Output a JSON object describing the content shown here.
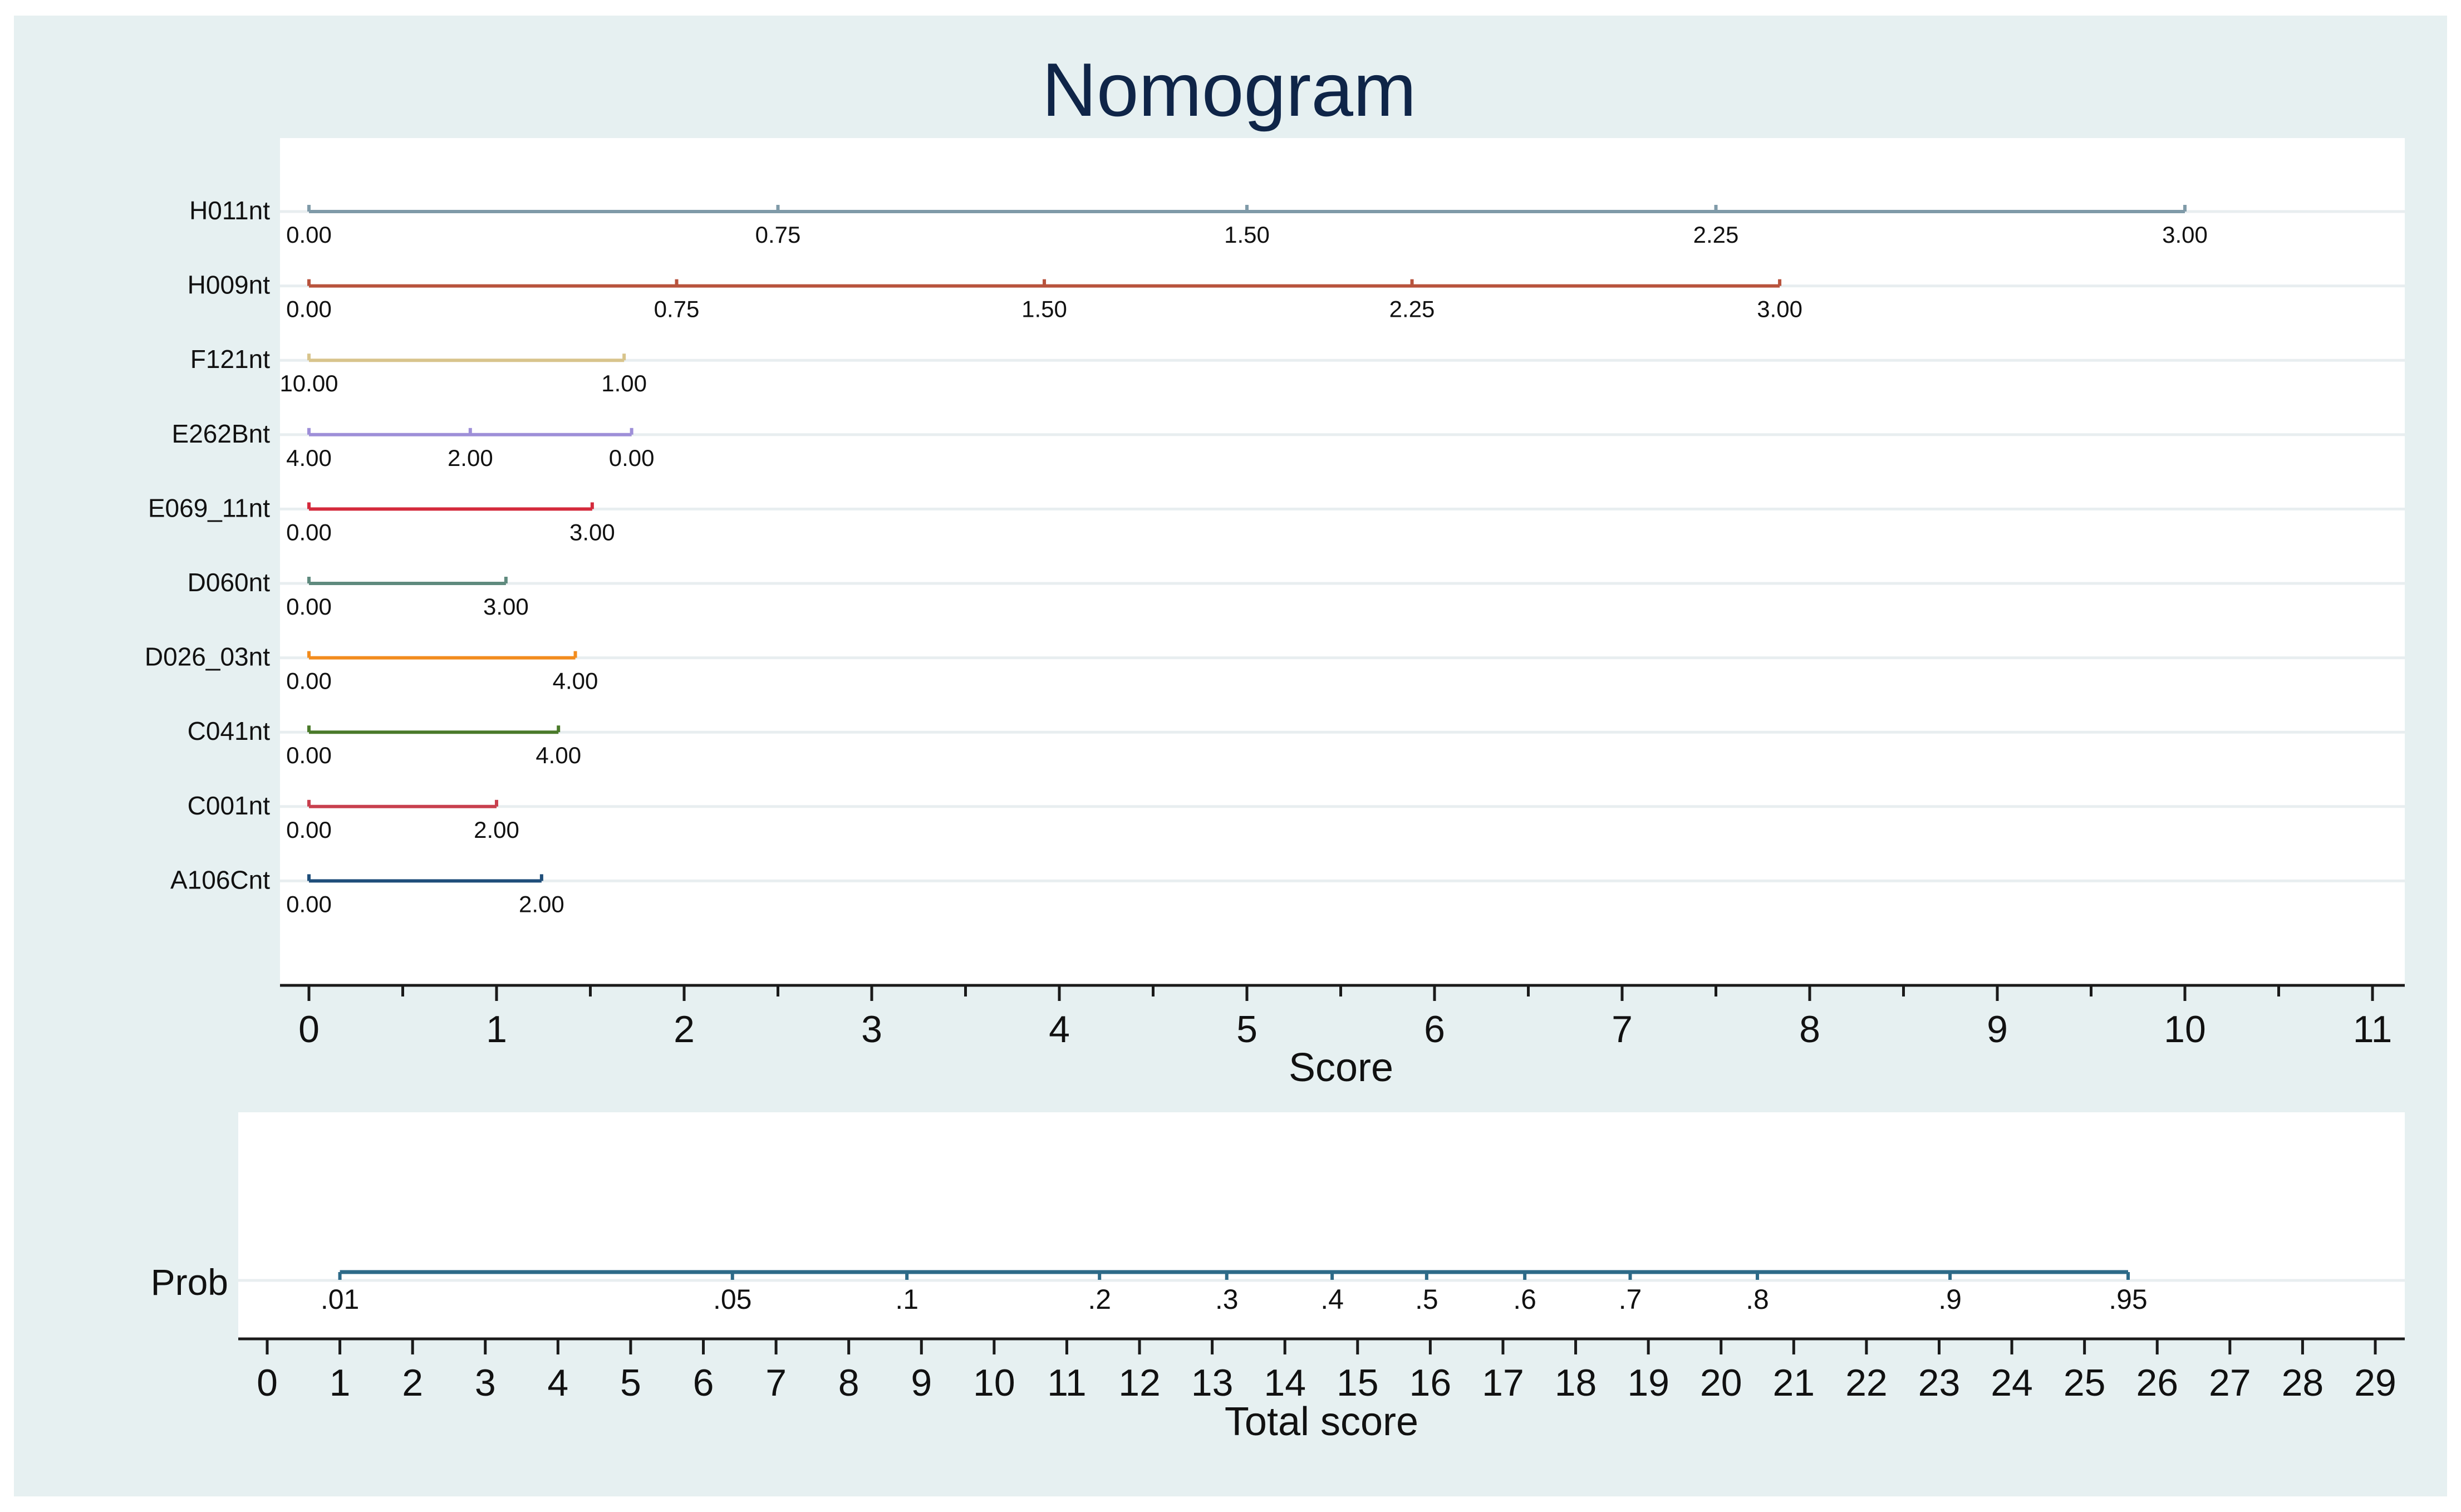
{
  "colors": {
    "page_bg": "#ffffff",
    "outer_bg": "#e6f0f1",
    "plot_bg": "#ffffff",
    "grid": "#e8eef0",
    "axis": "#1a1a1a",
    "title": "#0f2548",
    "text": "#111111"
  },
  "chart_data": [
    {
      "type": "nomogram-points",
      "title": "Nomogram",
      "xlabel": "Score",
      "xlim": [
        0,
        11
      ],
      "tick_labels": [
        "0",
        "1",
        "2",
        "3",
        "4",
        "5",
        "6",
        "7",
        "8",
        "9",
        "10",
        "11"
      ],
      "variables": [
        {
          "name": "H011nt",
          "color": "#7f9aa8",
          "ticks": [
            {
              "label": "0.00",
              "score": 0
            },
            {
              "label": "0.75",
              "score": 2.5
            },
            {
              "label": "1.50",
              "score": 5
            },
            {
              "label": "2.25",
              "score": 7.5
            },
            {
              "label": "3.00",
              "score": 10
            }
          ]
        },
        {
          "name": "H009nt",
          "color": "#b8533d",
          "ticks": [
            {
              "label": "0.00",
              "score": 0
            },
            {
              "label": "0.75",
              "score": 1.96
            },
            {
              "label": "1.50",
              "score": 3.92
            },
            {
              "label": "2.25",
              "score": 5.88
            },
            {
              "label": "3.00",
              "score": 7.84
            }
          ]
        },
        {
          "name": "F121nt",
          "color": "#d8c48c",
          "ticks": [
            {
              "label": "10.00",
              "score": 0
            },
            {
              "label": "1.00",
              "score": 1.68
            }
          ]
        },
        {
          "name": "E262Bnt",
          "color": "#9e8fd8",
          "ticks": [
            {
              "label": "4.00",
              "score": 0
            },
            {
              "label": "2.00",
              "score": 0.86
            },
            {
              "label": "0.00",
              "score": 1.72
            }
          ]
        },
        {
          "name": "E069_11nt",
          "color": "#d42a3c",
          "ticks": [
            {
              "label": "0.00",
              "score": 0
            },
            {
              "label": "3.00",
              "score": 1.51
            }
          ]
        },
        {
          "name": "D060nt",
          "color": "#5f8a7e",
          "ticks": [
            {
              "label": "0.00",
              "score": 0
            },
            {
              "label": "3.00",
              "score": 1.05
            }
          ]
        },
        {
          "name": "D026_03nt",
          "color": "#f28c1e",
          "ticks": [
            {
              "label": "0.00",
              "score": 0
            },
            {
              "label": "4.00",
              "score": 1.42
            }
          ]
        },
        {
          "name": "C041nt",
          "color": "#4a7a2a",
          "ticks": [
            {
              "label": "0.00",
              "score": 0
            },
            {
              "label": "4.00",
              "score": 1.33
            }
          ]
        },
        {
          "name": "C001nt",
          "color": "#c8404e",
          "ticks": [
            {
              "label": "0.00",
              "score": 0
            },
            {
              "label": "2.00",
              "score": 1.0
            }
          ]
        },
        {
          "name": "A106Cnt",
          "color": "#1f4e7a",
          "ticks": [
            {
              "label": "0.00",
              "score": 0
            },
            {
              "label": "2.00",
              "score": 1.24
            }
          ]
        }
      ]
    },
    {
      "type": "nomogram-probability",
      "row_label": "Prob",
      "color": "#2d6a88",
      "xlabel": "Total score",
      "xlim": [
        0,
        29
      ],
      "tick_labels": [
        "0",
        "1",
        "2",
        "3",
        "4",
        "5",
        "6",
        "7",
        "8",
        "9",
        "10",
        "11",
        "12",
        "13",
        "14",
        "15",
        "16",
        "17",
        "18",
        "19",
        "20",
        "21",
        "22",
        "23",
        "24",
        "25",
        "26",
        "27",
        "28",
        "29"
      ],
      "ticks": [
        {
          "label": ".01",
          "total": 1.0
        },
        {
          "label": ".05",
          "total": 6.4
        },
        {
          "label": ".1",
          "total": 8.8
        },
        {
          "label": ".2",
          "total": 11.45
        },
        {
          "label": ".3",
          "total": 13.2
        },
        {
          "label": ".4",
          "total": 14.65
        },
        {
          "label": ".5",
          "total": 15.95
        },
        {
          "label": ".6",
          "total": 17.3
        },
        {
          "label": ".7",
          "total": 18.75
        },
        {
          "label": ".8",
          "total": 20.5
        },
        {
          "label": ".9",
          "total": 23.15
        },
        {
          "label": ".95",
          "total": 25.6
        }
      ]
    }
  ]
}
